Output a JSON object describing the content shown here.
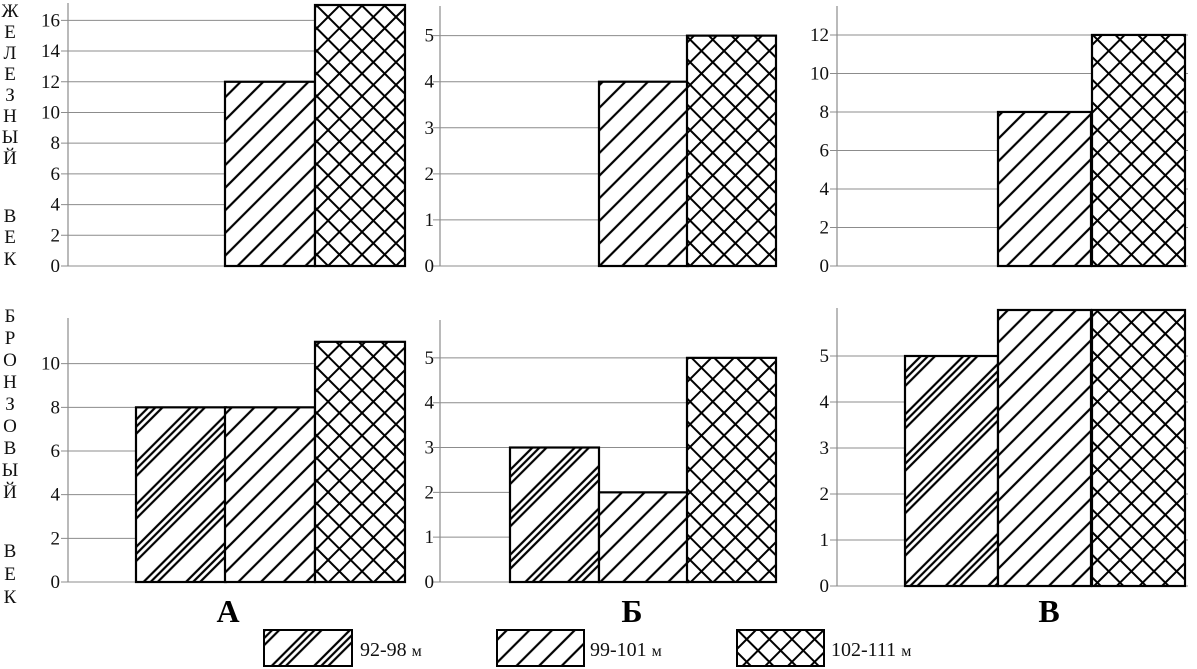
{
  "row_labels": {
    "iron_age": [
      "Ж",
      "Е",
      "Л",
      "Е",
      "З",
      "Н",
      "Ы",
      "Й",
      "",
      "В",
      "Е",
      "К"
    ],
    "bronze_age": [
      "Б",
      "Р",
      "О",
      "Н",
      "З",
      "О",
      "В",
      "Ы",
      "Й",
      "",
      "В",
      "Е",
      "К"
    ]
  },
  "column_labels": [
    "А",
    "Б",
    "В"
  ],
  "legend": [
    {
      "label": "92-98",
      "unit": "м",
      "pattern": "dense-diagonal"
    },
    {
      "label": "99-101",
      "unit": "м",
      "pattern": "diagonal"
    },
    {
      "label": "102-111",
      "unit": "м",
      "pattern": "crosshatch"
    }
  ],
  "colors": {
    "bar_outline": "#000000",
    "gridline": "#8c8c8c",
    "fill": "#ffffff"
  },
  "chart_data": [
    {
      "type": "bar",
      "panel": "iron-age-A",
      "row": "iron_age",
      "column": "А",
      "categories": [
        "92-98 м",
        "99-101 м",
        "102-111 м"
      ],
      "values": [
        0,
        12,
        17
      ],
      "ylim": [
        0,
        17
      ],
      "yticks": [
        0,
        2,
        4,
        6,
        8,
        10,
        12,
        14,
        16
      ],
      "grid": true
    },
    {
      "type": "bar",
      "panel": "iron-age-B",
      "row": "iron_age",
      "column": "Б",
      "categories": [
        "92-98 м",
        "99-101 м",
        "102-111 м"
      ],
      "values": [
        0,
        4,
        5
      ],
      "ylim": [
        0,
        5.6
      ],
      "yticks": [
        0,
        1,
        2,
        3,
        4,
        5
      ],
      "grid": true
    },
    {
      "type": "bar",
      "panel": "iron-age-V",
      "row": "iron_age",
      "column": "В",
      "categories": [
        "92-98 м",
        "99-101 м",
        "102-111 м"
      ],
      "values": [
        0,
        8,
        12
      ],
      "ylim": [
        0,
        13.4
      ],
      "yticks": [
        0,
        2,
        4,
        6,
        8,
        10,
        12
      ],
      "grid": true
    },
    {
      "type": "bar",
      "panel": "bronze-age-A",
      "row": "bronze_age",
      "column": "А",
      "categories": [
        "92-98 м",
        "99-101 м",
        "102-111 м"
      ],
      "values": [
        8,
        8,
        11
      ],
      "ylim": [
        0,
        12
      ],
      "yticks": [
        0,
        2,
        4,
        6,
        8,
        10
      ],
      "grid": true
    },
    {
      "type": "bar",
      "panel": "bronze-age-B",
      "row": "bronze_age",
      "column": "Б",
      "categories": [
        "92-98 м",
        "99-101 м",
        "102-111 м"
      ],
      "values": [
        3,
        2,
        5
      ],
      "ylim": [
        0,
        5.8
      ],
      "yticks": [
        0,
        1,
        2,
        3,
        4,
        5
      ],
      "grid": true
    },
    {
      "type": "bar",
      "panel": "bronze-age-V",
      "row": "bronze_age",
      "column": "В",
      "categories": [
        "92-98 м",
        "99-101 м",
        "102-111 м"
      ],
      "values": [
        5,
        6,
        6
      ],
      "ylim": [
        0,
        6
      ],
      "yticks": [
        0,
        1,
        2,
        3,
        4,
        5
      ],
      "grid": true
    }
  ]
}
